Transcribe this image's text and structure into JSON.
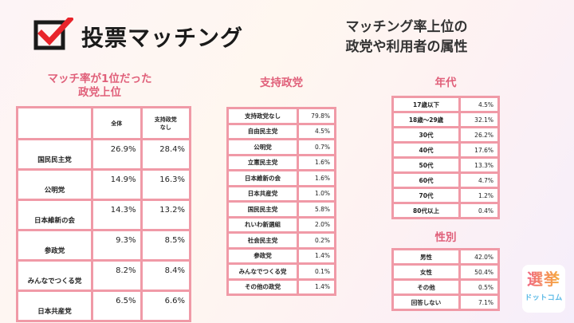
{
  "logo": {
    "text": "投票マッチング",
    "icon": "check-box-icon"
  },
  "headline": {
    "line1": "マッチング率上位の",
    "line2": "政党や利用者の属性"
  },
  "top_match": {
    "title_line1": "マッチ率が1位だった",
    "title_line2": "政党上位",
    "col_all": "全体",
    "col_none_line1": "支持政党",
    "col_none_line2": "なし",
    "rows": [
      {
        "name": "国民民主党",
        "all": "26.9%",
        "none": "28.4%"
      },
      {
        "name": "公明党",
        "all": "14.9%",
        "none": "16.3%"
      },
      {
        "name": "日本維新の会",
        "all": "14.3%",
        "none": "13.2%"
      },
      {
        "name": "参政党",
        "all": "9.3%",
        "none": "8.5%"
      },
      {
        "name": "みんなでつくる党",
        "all": "8.2%",
        "none": "8.4%"
      },
      {
        "name": "日本共産党",
        "all": "6.5%",
        "none": "6.6%"
      }
    ]
  },
  "support": {
    "title": "支持政党",
    "rows": [
      {
        "name": "支持政党なし",
        "value": "79.8%"
      },
      {
        "name": "自由民主党",
        "value": "4.5%"
      },
      {
        "name": "公明党",
        "value": "0.7%"
      },
      {
        "name": "立憲民主党",
        "value": "1.6%"
      },
      {
        "name": "日本維新の会",
        "value": "1.6%"
      },
      {
        "name": "日本共産党",
        "value": "1.0%"
      },
      {
        "name": "国民民主党",
        "value": "5.8%"
      },
      {
        "name": "れいわ新選組",
        "value": "2.0%"
      },
      {
        "name": "社会民主党",
        "value": "0.2%"
      },
      {
        "name": "参政党",
        "value": "1.4%"
      },
      {
        "name": "みんなでつくる党",
        "value": "0.1%"
      },
      {
        "name": "その他の政党",
        "value": "1.4%"
      }
    ]
  },
  "age": {
    "title": "年代",
    "rows": [
      {
        "name": "17歳以下",
        "value": "4.5%"
      },
      {
        "name": "18歳〜29歳",
        "value": "32.1%"
      },
      {
        "name": "30代",
        "value": "26.2%"
      },
      {
        "name": "40代",
        "value": "17.6%"
      },
      {
        "name": "50代",
        "value": "13.3%"
      },
      {
        "name": "60代",
        "value": "4.7%"
      },
      {
        "name": "70代",
        "value": "1.2%"
      },
      {
        "name": "80代以上",
        "value": "0.4%"
      }
    ]
  },
  "gender": {
    "title": "性別",
    "rows": [
      {
        "name": "男性",
        "value": "42.0%"
      },
      {
        "name": "女性",
        "value": "50.4%"
      },
      {
        "name": "その他",
        "value": "0.5%"
      },
      {
        "name": "回答しない",
        "value": "7.1%"
      }
    ]
  },
  "brand": {
    "big": "選挙",
    "small": "ドットコム"
  },
  "colors": {
    "accent": "#e0607a",
    "table_border": "#f09aa7",
    "logo_red": "#e8232a"
  }
}
